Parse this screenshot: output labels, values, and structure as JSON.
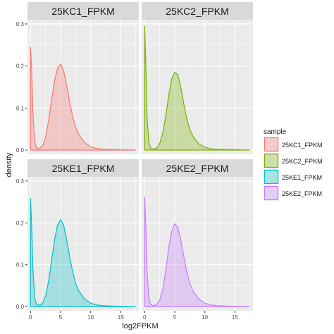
{
  "chart_data": {
    "type": "area",
    "facet_layout": "2x2 grid",
    "xlabel": "log2FPKM",
    "ylabel": "density",
    "xlim": [
      -0.5,
      18
    ],
    "ylim": [
      -0.01,
      0.31
    ],
    "x_ticks": [
      0,
      5,
      10,
      15
    ],
    "y_ticks": [
      0.0,
      0.1,
      0.2,
      0.3
    ],
    "x_tick_labels": [
      "0",
      "5",
      "10",
      "15"
    ],
    "y_tick_labels": [
      "0.0",
      "0.1",
      "0.2",
      "0.3"
    ],
    "grid": true,
    "legend": {
      "title": "sample",
      "position": "right",
      "entries": [
        "25KC1_FPKM",
        "25KC2_FPKM",
        "25KE1_FPKM",
        "25KE2_FPKM"
      ]
    },
    "colors": {
      "25KC1_FPKM": "#F8766D",
      "25KC2_FPKM": "#7CAE00",
      "25KE1_FPKM": "#00BFC4",
      "25KE2_FPKM": "#C77CFF",
      "panel_bg": "#EBEBEB",
      "strip_bg": "#D9D9D9",
      "grid": "#FFFFFF"
    },
    "panels": [
      {
        "name": "25KC1_FPKM",
        "x": [
          0,
          0.2,
          0.4,
          0.7,
          1.0,
          1.5,
          2.0,
          2.5,
          3.0,
          3.5,
          4.0,
          4.5,
          5.0,
          5.5,
          6.0,
          6.5,
          7.0,
          7.5,
          8.0,
          9.0,
          10.0,
          11.0,
          12.0,
          14.0,
          17.5
        ],
        "y": [
          0.245,
          0.19,
          0.09,
          0.02,
          0.005,
          0.004,
          0.01,
          0.03,
          0.07,
          0.12,
          0.165,
          0.195,
          0.205,
          0.19,
          0.155,
          0.115,
          0.08,
          0.055,
          0.038,
          0.018,
          0.008,
          0.004,
          0.002,
          0.001,
          0.0
        ]
      },
      {
        "name": "25KC2_FPKM",
        "x": [
          0,
          0.2,
          0.4,
          0.7,
          1.0,
          1.5,
          2.0,
          2.5,
          3.0,
          3.5,
          4.0,
          4.5,
          5.0,
          5.5,
          6.0,
          6.5,
          7.0,
          7.5,
          8.0,
          9.0,
          10.0,
          11.0,
          12.0,
          14.0,
          17.5
        ],
        "y": [
          0.295,
          0.2,
          0.08,
          0.02,
          0.005,
          0.002,
          0.005,
          0.015,
          0.04,
          0.08,
          0.13,
          0.17,
          0.185,
          0.18,
          0.15,
          0.11,
          0.075,
          0.05,
          0.033,
          0.015,
          0.007,
          0.003,
          0.002,
          0.001,
          0.0
        ]
      },
      {
        "name": "25KE1_FPKM",
        "x": [
          0,
          0.2,
          0.4,
          0.7,
          1.0,
          1.5,
          2.0,
          2.5,
          3.0,
          3.5,
          4.0,
          4.5,
          5.0,
          5.5,
          6.0,
          6.5,
          7.0,
          7.5,
          8.0,
          9.0,
          10.0,
          11.0,
          12.0,
          14.0,
          17.5
        ],
        "y": [
          0.258,
          0.19,
          0.09,
          0.02,
          0.005,
          0.003,
          0.008,
          0.025,
          0.06,
          0.11,
          0.16,
          0.195,
          0.208,
          0.195,
          0.16,
          0.12,
          0.083,
          0.056,
          0.038,
          0.018,
          0.008,
          0.004,
          0.002,
          0.001,
          0.0
        ]
      },
      {
        "name": "25KE2_FPKM",
        "x": [
          0,
          0.2,
          0.4,
          0.7,
          1.0,
          1.5,
          2.0,
          2.5,
          3.0,
          3.5,
          4.0,
          4.5,
          5.0,
          5.5,
          6.0,
          6.5,
          7.0,
          7.5,
          8.0,
          9.0,
          10.0,
          11.0,
          12.0,
          14.0,
          17.5
        ],
        "y": [
          0.262,
          0.19,
          0.085,
          0.02,
          0.005,
          0.002,
          0.005,
          0.015,
          0.04,
          0.085,
          0.14,
          0.18,
          0.198,
          0.19,
          0.16,
          0.12,
          0.083,
          0.056,
          0.038,
          0.018,
          0.008,
          0.004,
          0.002,
          0.001,
          0.0
        ]
      }
    ]
  }
}
